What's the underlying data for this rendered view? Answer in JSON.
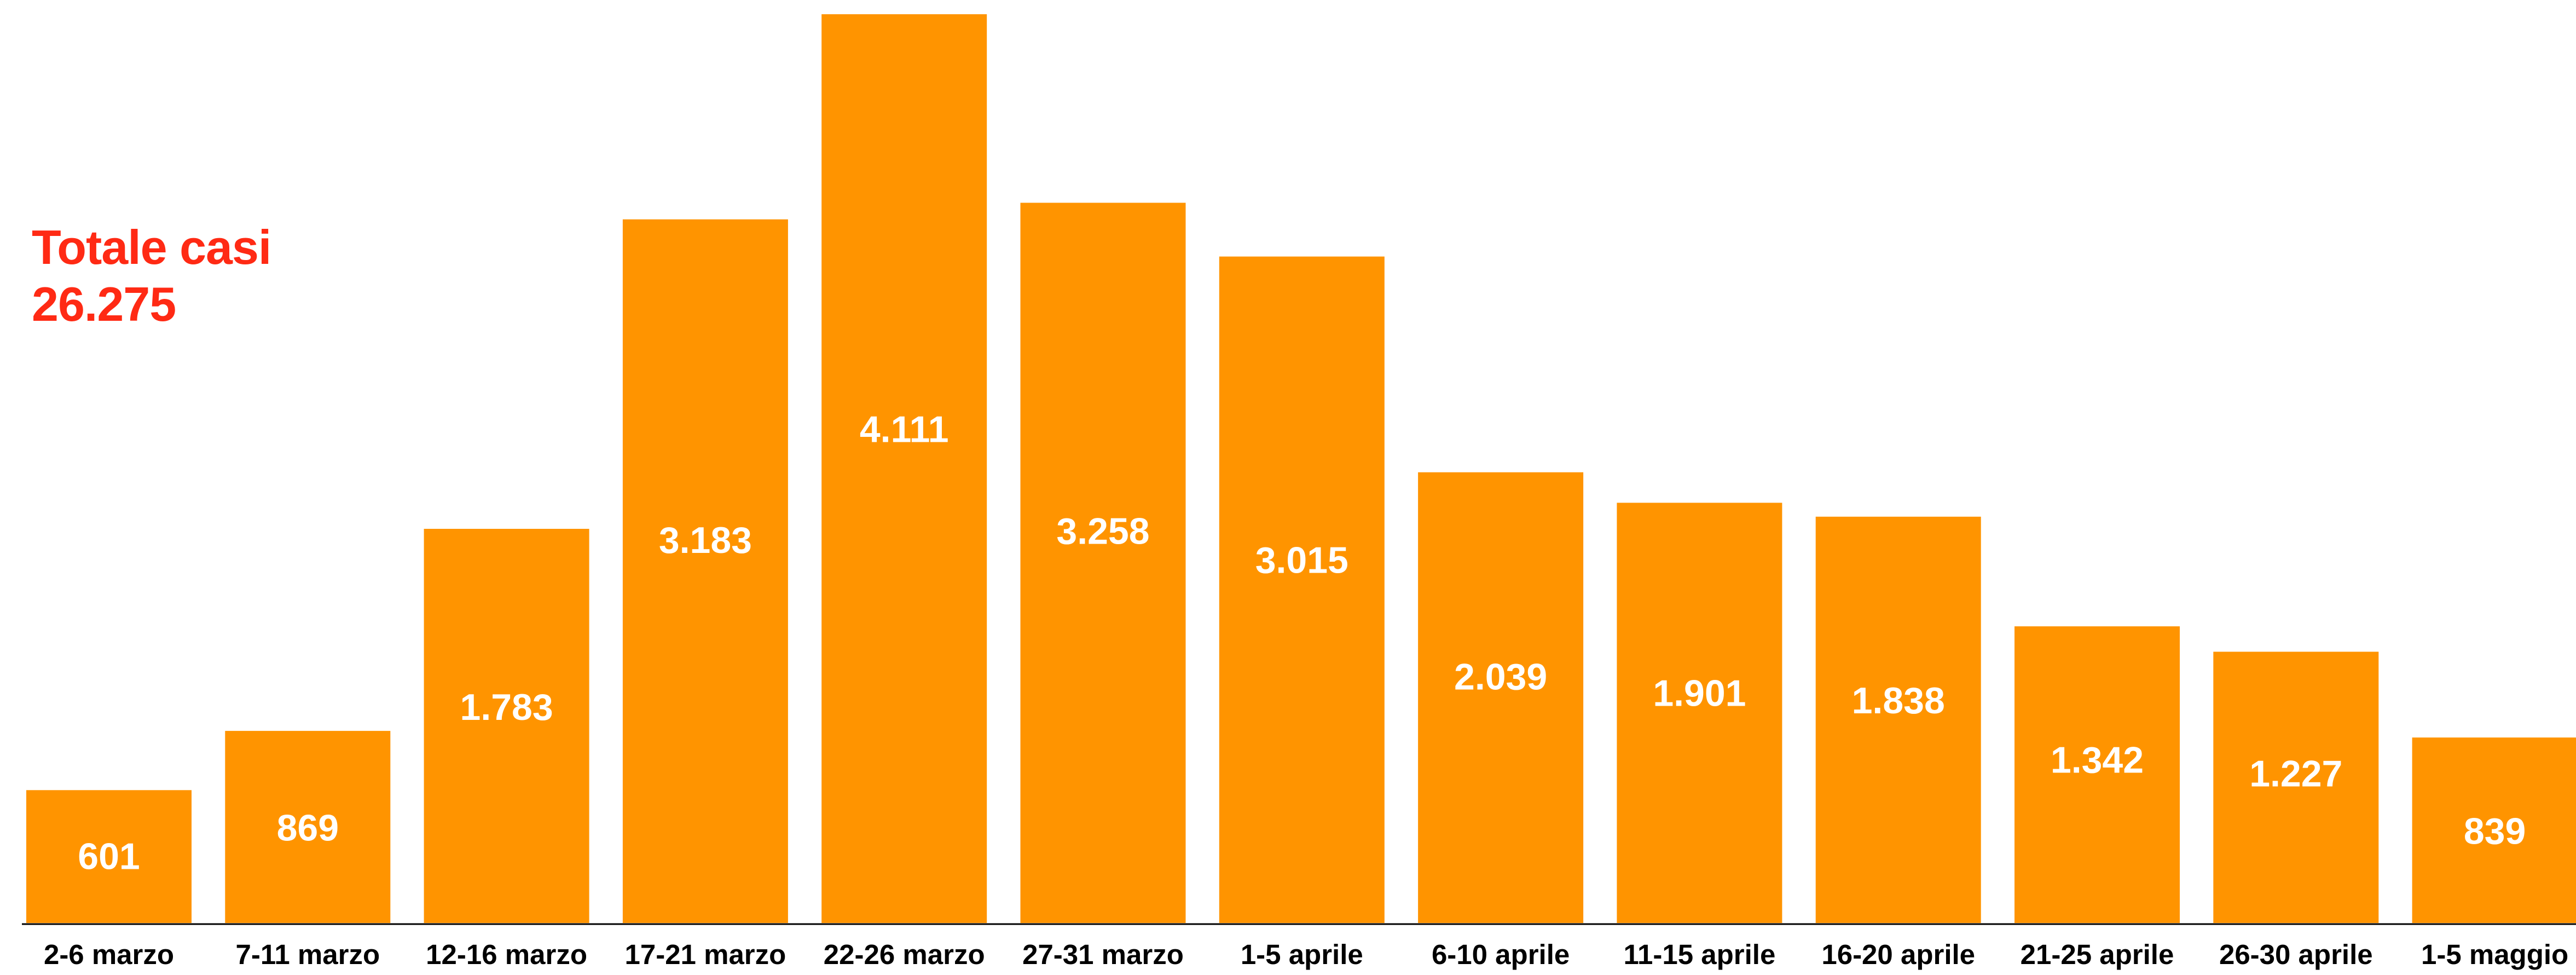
{
  "total": {
    "label": "Totale casi",
    "value": "26.275"
  },
  "colors": {
    "bar": "#ff9400",
    "bar_label": "#ffffff",
    "total": "#ff2a14",
    "axis": "#000000",
    "tick_label": "#000000"
  },
  "chart_data": {
    "type": "bar",
    "title": "",
    "xlabel": "",
    "ylabel": "",
    "categories": [
      "2-6 marzo",
      "7-11 marzo",
      "12-16 marzo",
      "17-21 marzo",
      "22-26 marzo",
      "27-31 marzo",
      "1-5 aprile",
      "6-10 aprile",
      "11-15 aprile",
      "16-20 aprile",
      "21-25 aprile",
      "26-30 aprile",
      "1-5 maggio"
    ],
    "values": [
      601,
      869,
      1783,
      3183,
      4111,
      3258,
      3015,
      2039,
      1901,
      1838,
      1342,
      1227,
      839
    ],
    "value_labels": [
      "601",
      "869",
      "1.783",
      "3.183",
      "4.111",
      "3.258",
      "3.015",
      "2.039",
      "1.901",
      "1.838",
      "1.342",
      "1.227",
      "839"
    ],
    "ylim": [
      0,
      4111
    ],
    "grid": false,
    "legend": "none"
  }
}
